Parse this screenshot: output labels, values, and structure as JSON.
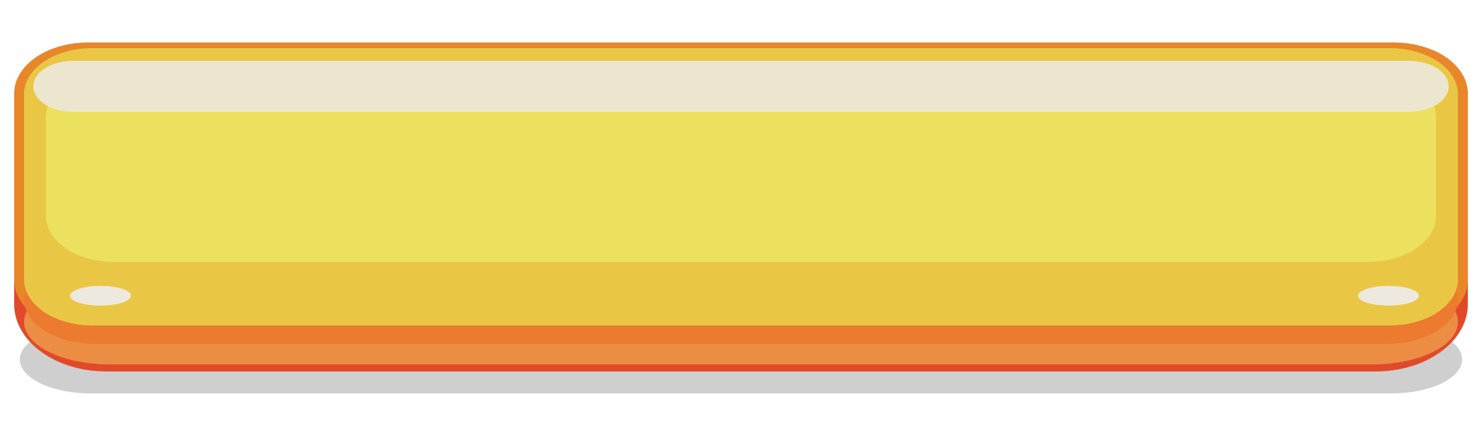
{
  "button": {
    "label": "",
    "colors": {
      "shadow": "#cfcfcf",
      "outline_bottom": "#e04a2a",
      "base_orange": "#ec8d44",
      "band_orange": "#ec7a2f",
      "outline_top": "#e8862a",
      "face": "#e9c745",
      "inner_face": "#ebe15f",
      "gloss": "#ece6cf",
      "highlight_dots": "#eee9df"
    }
  }
}
